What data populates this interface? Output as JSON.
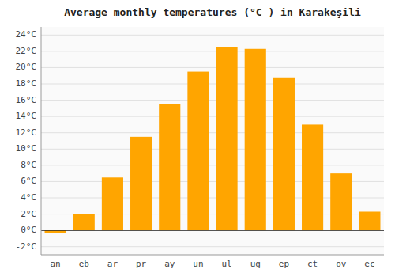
{
  "chart_data": {
    "type": "bar",
    "title": "Average monthly temperatures (°C ) in Karakeşili",
    "categories": [
      "an",
      "eb",
      "ar",
      "pr",
      "ay",
      "un",
      "ul",
      "ug",
      "ep",
      "ct",
      "ov",
      "ec"
    ],
    "values": [
      -0.3,
      2.0,
      6.5,
      11.5,
      15.5,
      19.5,
      22.5,
      22.3,
      18.8,
      13.0,
      7.0,
      2.3
    ],
    "color": "#FFA500",
    "ylim": [
      -3,
      25
    ],
    "yticks": [
      {
        "value": -2,
        "label": "-2°C"
      },
      {
        "value": 0,
        "label": "0°C"
      },
      {
        "value": 2,
        "label": "2°C"
      },
      {
        "value": 4,
        "label": "4°C"
      },
      {
        "value": 6,
        "label": "6°C"
      },
      {
        "value": 8,
        "label": "8°C"
      },
      {
        "value": 10,
        "label": "10°C"
      },
      {
        "value": 12,
        "label": "12°C"
      },
      {
        "value": 14,
        "label": "14°C"
      },
      {
        "value": 16,
        "label": "16°C"
      },
      {
        "value": 18,
        "label": "18°C"
      },
      {
        "value": 20,
        "label": "20°C"
      },
      {
        "value": 22,
        "label": "22°C"
      },
      {
        "value": 24,
        "label": "24°C"
      }
    ],
    "grid": true
  }
}
